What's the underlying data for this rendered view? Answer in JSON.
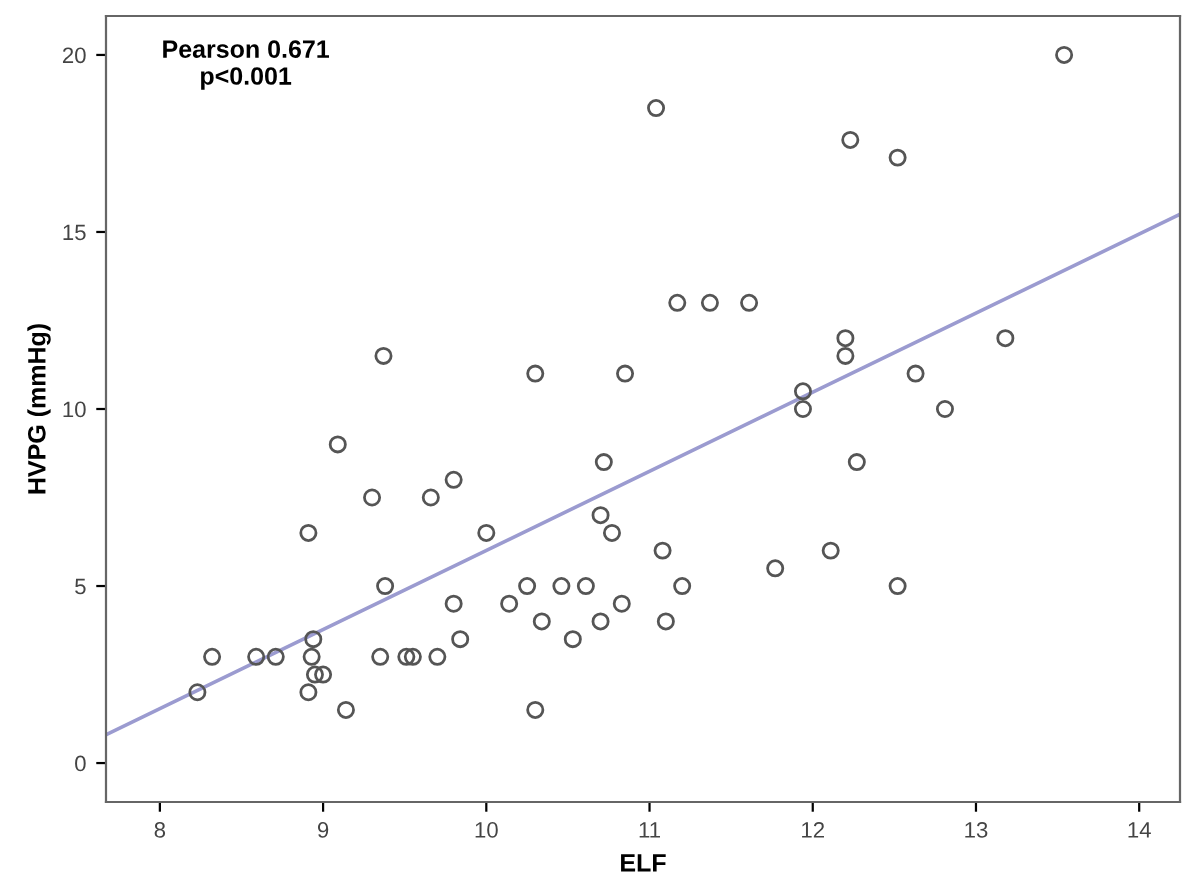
{
  "chart_data": {
    "type": "scatter",
    "xlabel": "ELF",
    "ylabel": "HVPG (mmHg)",
    "annotations": [
      "Pearson 0.671\np<0.001"
    ],
    "xlim": [
      7.67,
      14.25
    ],
    "ylim": [
      -1.1,
      21.1
    ],
    "xticks": [
      8,
      9,
      10,
      11,
      12,
      13,
      14
    ],
    "yticks": [
      0,
      5,
      10,
      15,
      20
    ],
    "grid": false,
    "series": [
      {
        "marker": "circle",
        "color": "#555555",
        "x": [
          13.54,
          11.04,
          12.23,
          12.52,
          11.17,
          11.37,
          11.61,
          10.85,
          13.18,
          12.2,
          12.2,
          12.63,
          12.81,
          11.94,
          11.94,
          9.37,
          10.3,
          9.09,
          9.3,
          9.66,
          9.8,
          8.91,
          10.0,
          9.38,
          9.8,
          9.84,
          8.32,
          8.59,
          8.71,
          8.94,
          8.93,
          8.95,
          9.0,
          8.91,
          8.23,
          9.14,
          9.35,
          9.51,
          9.55,
          9.7,
          10.3,
          10.14,
          10.25,
          10.34,
          10.46,
          10.53,
          10.61,
          10.7,
          10.83,
          10.72,
          10.7,
          10.77,
          11.08,
          11.2,
          11.1,
          11.77,
          12.11,
          12.52,
          12.27
        ],
        "values": [
          20.0,
          18.5,
          17.6,
          17.1,
          13.0,
          13.0,
          13.0,
          11.0,
          12.0,
          12.0,
          11.5,
          11.0,
          10.0,
          10.5,
          10.0,
          11.5,
          11.0,
          9.0,
          7.5,
          7.5,
          8.0,
          6.5,
          6.5,
          5.0,
          4.5,
          3.5,
          3.0,
          3.0,
          3.0,
          3.5,
          3.0,
          2.5,
          2.5,
          2.0,
          2.0,
          1.5,
          3.0,
          3.0,
          3.0,
          3.0,
          1.5,
          4.5,
          5.0,
          4.0,
          5.0,
          3.5,
          5.0,
          4.0,
          4.5,
          8.5,
          7.0,
          6.5,
          6.0,
          5.0,
          4.0,
          5.5,
          6.0,
          5.0,
          8.5
        ]
      },
      {
        "type": "line",
        "color": "#9b9bd0",
        "x": [
          7.67,
          14.25
        ],
        "values": [
          0.8,
          15.5
        ]
      }
    ]
  }
}
